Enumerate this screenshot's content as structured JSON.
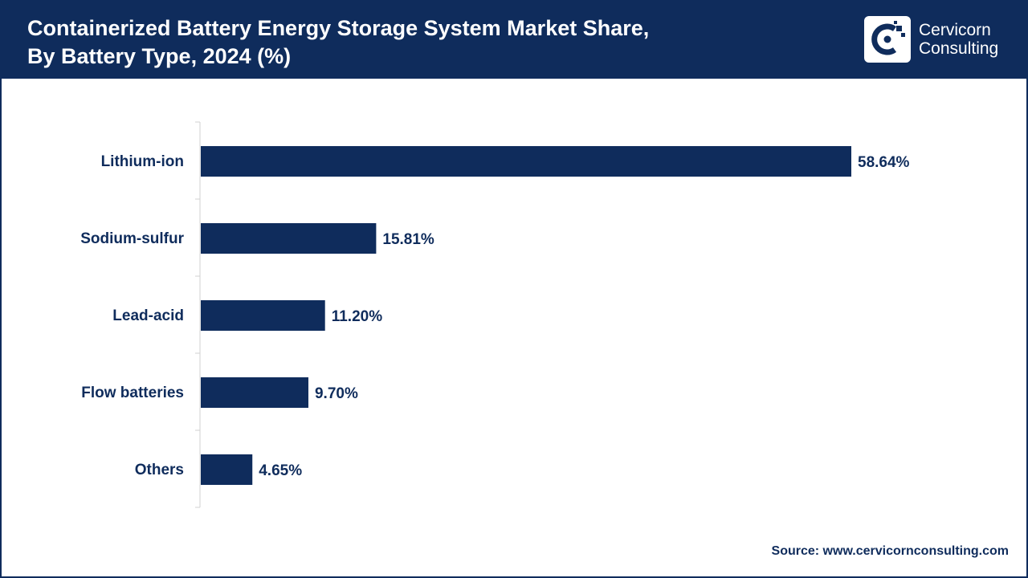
{
  "header": {
    "title_line1": "Containerized Battery Energy Storage System Market Share,",
    "title_line2": "By Battery Type, 2024 (%)"
  },
  "logo": {
    "icon": "cervicorn-logo-icon",
    "line1": "Cervicorn",
    "line2": "Consulting"
  },
  "colors": {
    "primary": "#0f2c5c",
    "background": "#ffffff"
  },
  "chart_data": {
    "type": "bar",
    "orientation": "horizontal",
    "categories": [
      "Lithium-ion",
      "Sodium-sulfur",
      "Lead-acid",
      "Flow batteries",
      "Others"
    ],
    "values": [
      58.64,
      15.81,
      11.2,
      9.7,
      4.65
    ],
    "value_labels": [
      "58.64%",
      "15.81%",
      "11.20%",
      "9.70%",
      "4.65%"
    ],
    "title": "Containerized Battery Energy Storage System Market Share, By Battery Type, 2024 (%)",
    "xlabel": "",
    "ylabel": "",
    "grid": false,
    "legend": "none",
    "bar_color": "#0f2c5c"
  },
  "footer": {
    "source": "Source: www.cervicornconsulting.com"
  }
}
